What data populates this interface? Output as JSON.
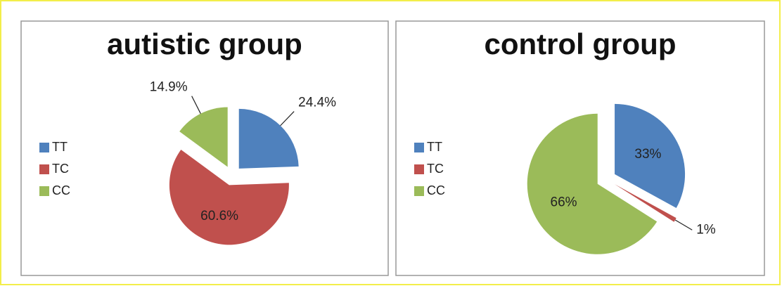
{
  "chart_data": [
    {
      "type": "pie",
      "title": "autistic group",
      "categories": [
        "TT",
        "TC",
        "CC"
      ],
      "values": [
        24.4,
        60.6,
        14.9
      ],
      "value_labels": [
        "24.4%",
        "60.6%",
        "14.9%"
      ],
      "colors": [
        "#4f81bd",
        "#c0504d",
        "#9bbb59"
      ],
      "legend": "left"
    },
    {
      "type": "pie",
      "title": "control group",
      "categories": [
        "TT",
        "TC",
        "CC"
      ],
      "values": [
        33,
        1,
        66
      ],
      "value_labels": [
        "33%",
        "1%",
        "66%"
      ],
      "colors": [
        "#4f81bd",
        "#c0504d",
        "#9bbb59"
      ],
      "legend": "left"
    }
  ]
}
